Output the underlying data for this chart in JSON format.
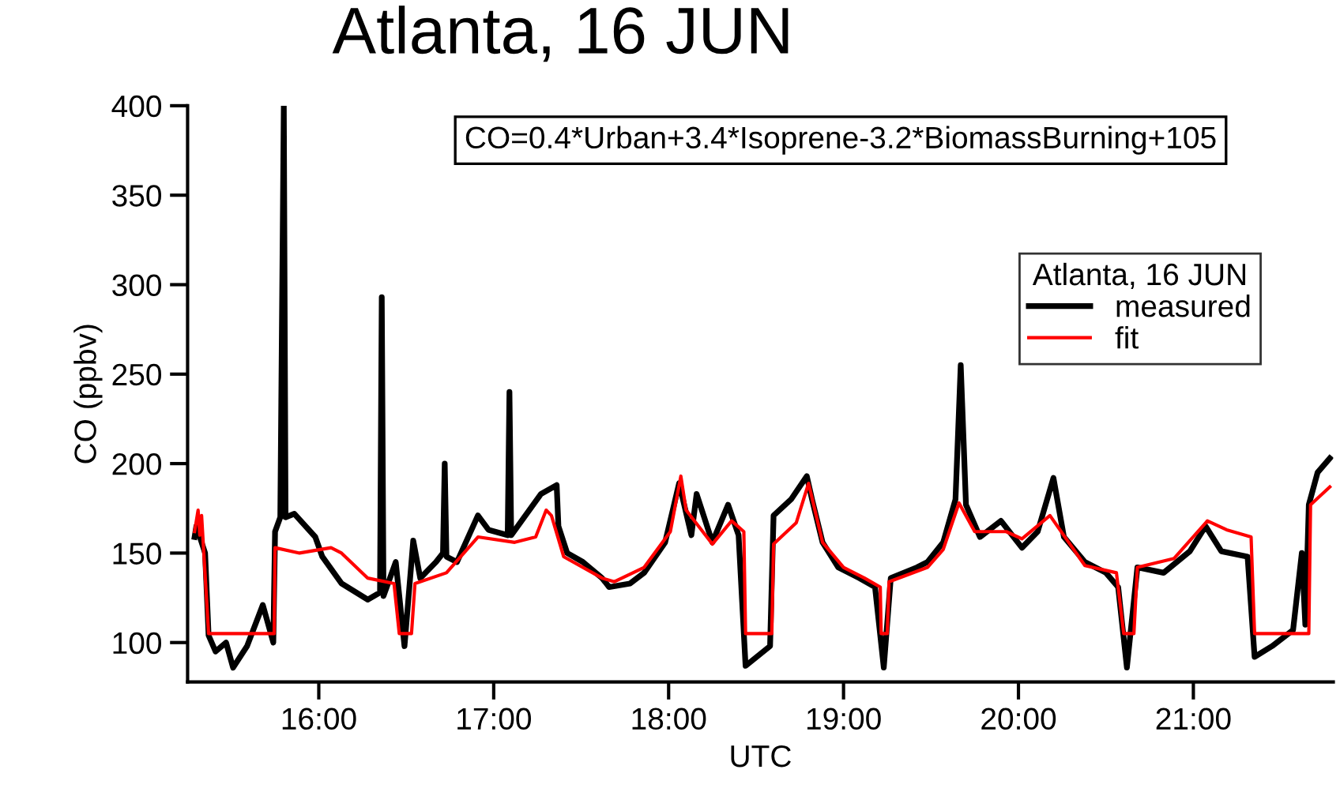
{
  "chart_data": {
    "type": "line",
    "title": "Atlanta, 16 JUN",
    "xlabel": "UTC",
    "ylabel": "CO (ppbv)",
    "legend_title": "Atlanta, 16 JUN",
    "annotations": [
      "CO=0.4*Urban+3.4*Isoprene-3.2*BiomassBurning+105"
    ],
    "series": [
      {
        "name": "measured",
        "color": "#000000",
        "x": [
          15.29,
          15.3,
          15.35,
          15.37,
          15.41,
          15.47,
          15.51,
          15.59,
          15.68,
          15.74,
          15.75,
          15.78,
          15.8,
          15.81,
          15.86,
          15.98,
          16.02,
          16.13,
          16.28,
          16.35,
          16.36,
          16.37,
          16.44,
          16.49,
          16.54,
          16.58,
          16.67,
          16.71,
          16.72,
          16.73,
          16.79,
          16.91,
          16.97,
          17.08,
          17.09,
          17.1,
          17.27,
          17.36,
          17.37,
          17.42,
          17.51,
          17.62,
          17.66,
          17.78,
          17.86,
          17.98,
          18.06,
          18.13,
          18.16,
          18.25,
          18.34,
          18.4,
          18.44,
          18.58,
          18.6,
          18.7,
          18.79,
          18.82,
          18.88,
          18.97,
          19.09,
          19.18,
          19.23,
          19.27,
          19.42,
          19.48,
          19.57,
          19.64,
          19.67,
          19.7,
          19.78,
          19.9,
          20.02,
          20.11,
          20.2,
          20.26,
          20.38,
          20.5,
          20.57,
          20.62,
          20.68,
          20.83,
          20.98,
          21.07,
          21.16,
          21.31,
          21.35,
          21.45,
          21.57,
          21.62,
          21.64,
          21.66,
          21.71,
          21.78
        ],
        "values": [
          159,
          165,
          150,
          104,
          95,
          100,
          86,
          98,
          121,
          100,
          162,
          170,
          400,
          170,
          172,
          159,
          148,
          133,
          124,
          128,
          293,
          126,
          145,
          98,
          157,
          136,
          145,
          150,
          200,
          148,
          145,
          171,
          163,
          160,
          240,
          160,
          183,
          188,
          165,
          150,
          145,
          136,
          131,
          133,
          139,
          156,
          189,
          160,
          183,
          156,
          177,
          160,
          87,
          98,
          171,
          180,
          193,
          180,
          156,
          142,
          136,
          131,
          86,
          136,
          142,
          145,
          156,
          180,
          255,
          177,
          159,
          168,
          153,
          162,
          192,
          159,
          145,
          139,
          131,
          86,
          142,
          139,
          151,
          165,
          151,
          148,
          92,
          98,
          107,
          150,
          110,
          177,
          195,
          203
        ]
      },
      {
        "name": "fit",
        "color": "#ff0000",
        "x": [
          15.29,
          15.31,
          15.32,
          15.33,
          15.37,
          15.745,
          15.75,
          15.89,
          16.07,
          16.13,
          16.28,
          16.43,
          16.46,
          16.53,
          16.55,
          16.73,
          16.91,
          17.12,
          17.24,
          17.3,
          17.33,
          17.4,
          17.62,
          17.69,
          17.86,
          18.01,
          18.07,
          18.1,
          18.25,
          18.36,
          18.43,
          18.44,
          18.59,
          18.6,
          18.73,
          18.8,
          18.88,
          19.0,
          19.12,
          19.21,
          19.215,
          19.25,
          19.26,
          19.48,
          19.57,
          19.66,
          19.75,
          19.93,
          20.02,
          20.18,
          20.38,
          20.56,
          20.602,
          20.66,
          20.68,
          20.89,
          21.08,
          21.19,
          21.33,
          21.35,
          21.66,
          21.67,
          21.78
        ],
        "values": [
          162,
          174,
          160,
          171,
          105,
          105,
          153,
          150,
          153,
          150,
          136,
          133,
          105,
          105,
          133,
          139,
          159,
          156,
          159,
          174,
          171,
          148,
          136,
          134,
          142,
          162,
          193,
          174,
          155,
          168,
          162,
          105,
          105,
          155,
          167,
          189,
          156,
          142,
          136,
          131,
          105,
          105,
          134,
          142,
          152,
          178,
          162,
          162,
          158,
          171,
          143,
          139,
          105,
          105,
          142,
          147,
          168,
          163,
          159,
          105,
          105,
          177,
          187
        ]
      }
    ],
    "xlim": [
      15.25,
      21.8
    ],
    "ylim": [
      78,
      400
    ],
    "xticks": [
      {
        "value": 16,
        "label": "16:00"
      },
      {
        "value": 17,
        "label": "17:00"
      },
      {
        "value": 18,
        "label": "18:00"
      },
      {
        "value": 19,
        "label": "19:00"
      },
      {
        "value": 20,
        "label": "20:00"
      },
      {
        "value": 21,
        "label": "21:00"
      }
    ],
    "yticks": [
      100,
      150,
      200,
      250,
      300,
      350,
      400
    ],
    "grid": false,
    "legend": "top right",
    "marker": "none",
    "line_style": "solid"
  }
}
